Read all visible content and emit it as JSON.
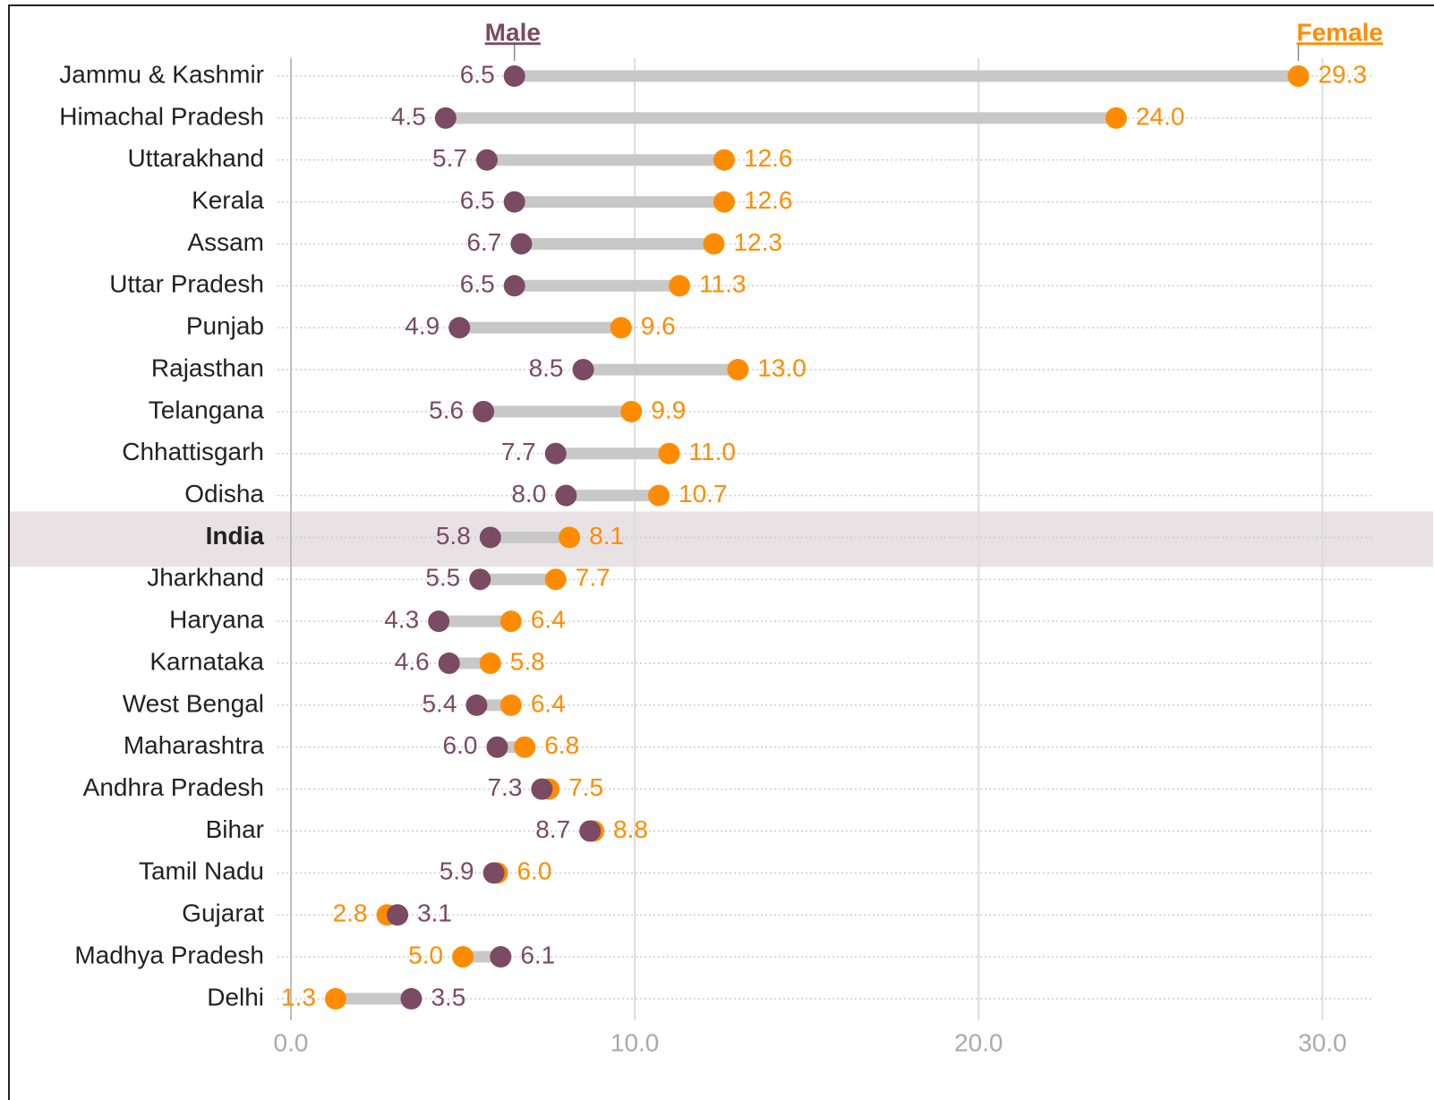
{
  "chart_data": {
    "type": "dumbbell",
    "categories": [
      "Jammu & Kashmir",
      "Himachal Pradesh",
      "Uttarakhand",
      "Kerala",
      "Assam",
      "Uttar Pradesh",
      "Punjab",
      "Rajasthan",
      "Telangana",
      "Chhattisgarh",
      "Odisha",
      "India",
      "Jharkhand",
      "Haryana",
      "Karnataka",
      "West Bengal",
      "Maharashtra",
      "Andhra Pradesh",
      "Bihar",
      "Tamil Nadu",
      "Gujarat",
      "Madhya Pradesh",
      "Delhi"
    ],
    "series": [
      {
        "name": "Male",
        "color": "#7b4a63",
        "values": [
          6.5,
          4.5,
          5.7,
          6.5,
          6.7,
          6.5,
          4.9,
          8.5,
          5.6,
          7.7,
          8.0,
          5.8,
          5.5,
          4.3,
          4.6,
          5.4,
          6.0,
          7.3,
          8.7,
          5.9,
          3.1,
          6.1,
          3.5
        ],
        "value_labels": [
          "6.5",
          "4.5",
          "5.7",
          "6.5",
          "6.7",
          "6.5",
          "4.9",
          "8.5",
          "5.6",
          "7.7",
          "8.0",
          "5.8",
          "5.5",
          "4.3",
          "4.6",
          "5.4",
          "6.0",
          "7.3",
          "8.7",
          "5.9",
          "3.1",
          "6.1",
          "3.5"
        ]
      },
      {
        "name": "Female",
        "color": "#ff8c00",
        "values": [
          29.3,
          24.0,
          12.6,
          12.6,
          12.3,
          11.3,
          9.6,
          13.0,
          9.9,
          11.0,
          10.7,
          8.1,
          7.7,
          6.4,
          5.8,
          6.4,
          6.8,
          7.5,
          8.8,
          6.0,
          2.8,
          5.0,
          1.3
        ],
        "value_labels": [
          "29.3",
          "24.0",
          "12.6",
          "12.6",
          "12.3",
          "11.3",
          "9.6",
          "13.0",
          "9.9",
          "11.0",
          "10.7",
          "8.1",
          "7.7",
          "6.4",
          "5.8",
          "6.4",
          "6.8",
          "7.5",
          "8.8",
          "6.0",
          "2.8",
          "5.0",
          "1.3"
        ]
      }
    ],
    "highlight": "India",
    "xlim": [
      0,
      31.5
    ],
    "xticks": [
      {
        "value": 0,
        "label": "0.0"
      },
      {
        "value": 10,
        "label": "10.0"
      },
      {
        "value": 20,
        "label": "20.0"
      },
      {
        "value": 30,
        "label": "30.0"
      }
    ],
    "grid": true
  }
}
